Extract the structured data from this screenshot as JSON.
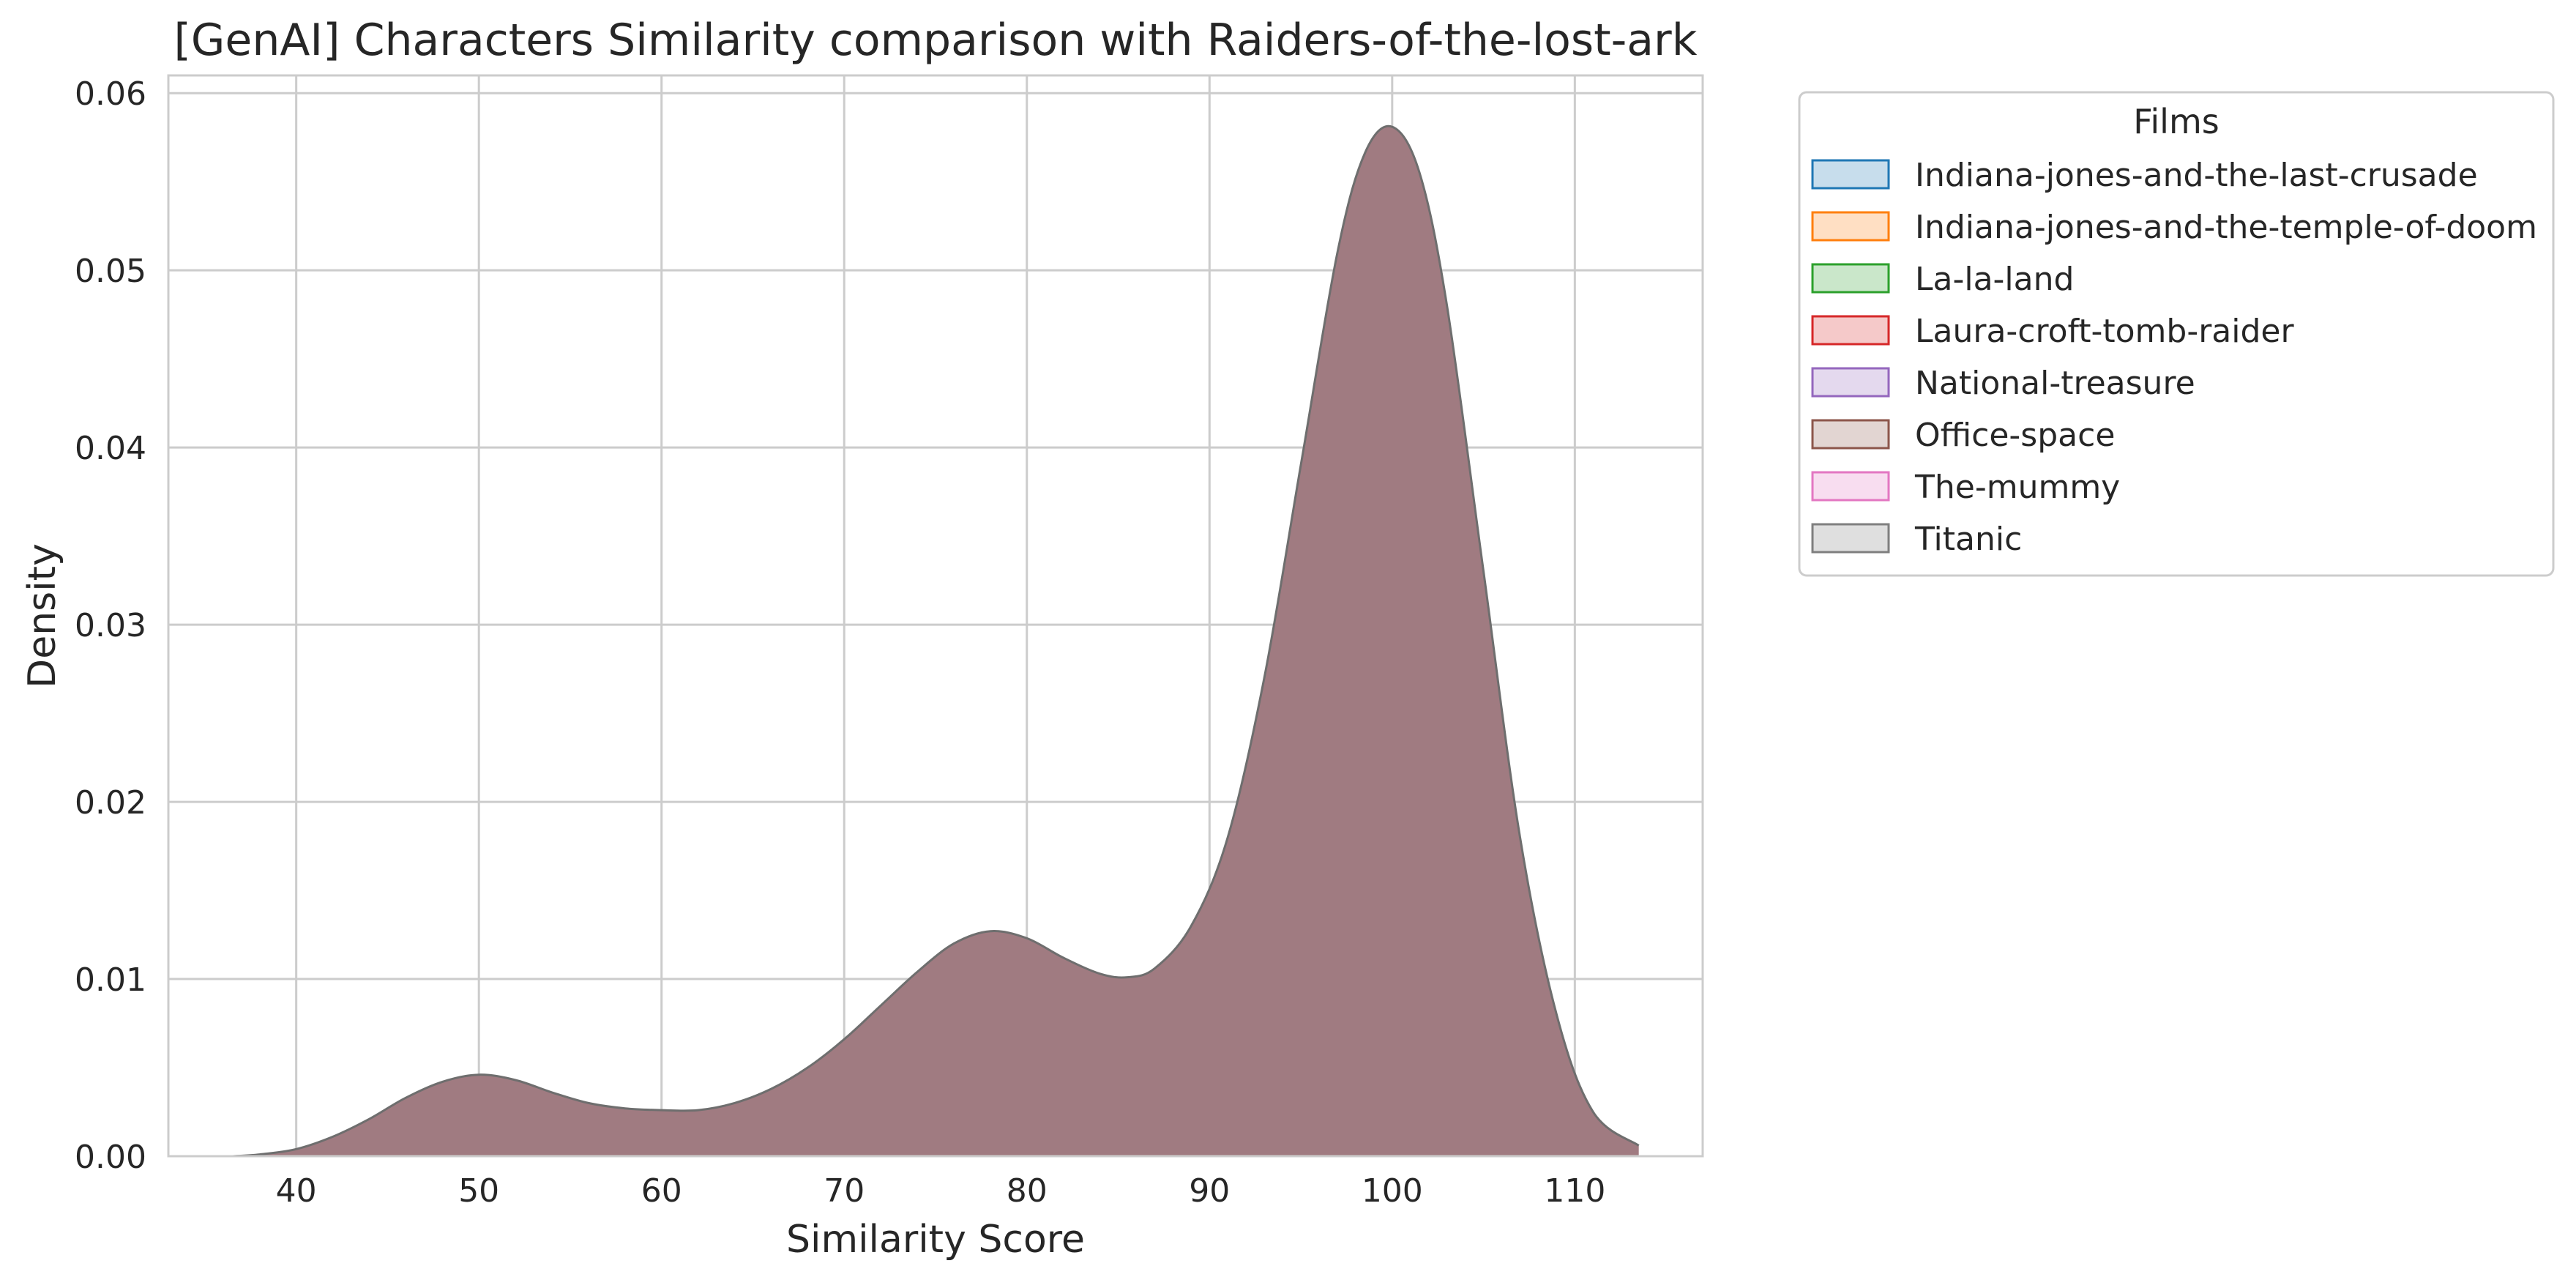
{
  "chart_data": {
    "type": "area",
    "title": "[GenAI] Characters Similarity comparison with Raiders-of-the-lost-ark",
    "xlabel": "Similarity Score",
    "ylabel": "Density",
    "xlim": [
      33,
      117
    ],
    "ylim": [
      0,
      0.061
    ],
    "x_ticks": [
      40,
      50,
      60,
      70,
      80,
      90,
      100,
      110
    ],
    "y_ticks": [
      0.0,
      0.01,
      0.02,
      0.03,
      0.04,
      0.05,
      0.06
    ],
    "y_tick_labels": [
      "0.00",
      "0.01",
      "0.02",
      "0.03",
      "0.04",
      "0.05",
      "0.06"
    ],
    "grid": true,
    "legend": {
      "title": "Films",
      "placement": "outside-top-right",
      "entries": [
        {
          "label": "Indiana-jones-and-the-last-crusade",
          "color": "#1f77b4"
        },
        {
          "label": "Indiana-jones-and-the-temple-of-doom",
          "color": "#ff7f0e"
        },
        {
          "label": "La-la-land",
          "color": "#2ca02c"
        },
        {
          "label": "Laura-croft-tomb-raider",
          "color": "#d62728"
        },
        {
          "label": "National-treasure",
          "color": "#9467bd"
        },
        {
          "label": "Office-space",
          "color": "#8c564b"
        },
        {
          "label": "The-mummy",
          "color": "#e377c2"
        },
        {
          "label": "Titanic",
          "color": "#7f7f7f"
        }
      ]
    },
    "fill_color": "#a07b81",
    "line_color": "#6e6e6e",
    "series": [
      {
        "x": [
          36.5,
          38,
          40,
          42,
          44,
          46,
          48,
          50,
          52,
          54,
          56,
          58,
          60,
          62,
          64,
          66,
          68,
          70,
          72,
          74,
          76,
          78,
          80,
          82,
          84,
          85.5,
          87,
          89,
          91,
          93,
          95,
          97,
          98.5,
          100,
          101.5,
          103,
          105,
          107,
          109,
          111,
          113.5
        ],
        "values": [
          0.0,
          0.0001,
          0.0004,
          0.0011,
          0.0021,
          0.0033,
          0.0042,
          0.0046,
          0.0043,
          0.0036,
          0.003,
          0.0027,
          0.0026,
          0.0026,
          0.003,
          0.0038,
          0.005,
          0.0066,
          0.0085,
          0.0104,
          0.012,
          0.0127,
          0.0123,
          0.0112,
          0.0103,
          0.0101,
          0.0106,
          0.013,
          0.018,
          0.027,
          0.039,
          0.051,
          0.0566,
          0.0581,
          0.0555,
          0.048,
          0.033,
          0.018,
          0.008,
          0.0025,
          0.0006
        ]
      }
    ]
  }
}
